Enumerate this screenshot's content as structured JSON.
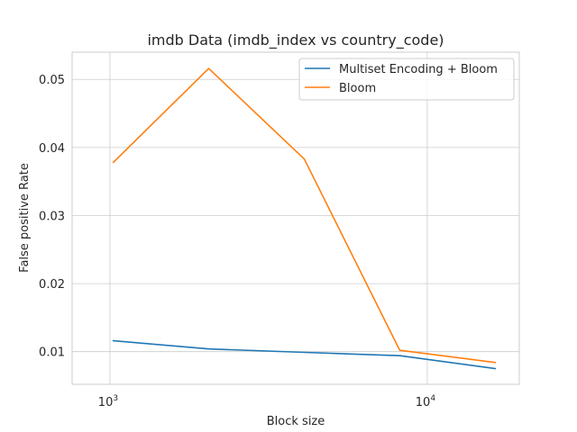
{
  "chart_data": {
    "type": "line",
    "title": "imdb Data (imdb_index vs country_code)",
    "xlabel": "Block size",
    "ylabel": "False positive Rate",
    "xscale": "log",
    "xlim": [
      760,
      19500
    ],
    "ylim": [
      0.0052,
      0.054
    ],
    "grid": true,
    "legend_position": "top-right",
    "x_ticks": [
      {
        "value": 1000,
        "base": "10",
        "exp": "3"
      },
      {
        "value": 10000,
        "base": "10",
        "exp": "4"
      }
    ],
    "y_ticks": [
      {
        "value": 0.01,
        "label": "0.01"
      },
      {
        "value": 0.02,
        "label": "0.02"
      },
      {
        "value": 0.03,
        "label": "0.03"
      },
      {
        "value": 0.04,
        "label": "0.04"
      },
      {
        "value": 0.05,
        "label": "0.05"
      }
    ],
    "x": [
      1024,
      2048,
      4096,
      8192,
      16384
    ],
    "series": [
      {
        "name": "Multiset Encoding + Bloom",
        "color": "#1f77b4",
        "values": [
          0.0116,
          0.0104,
          0.0099,
          0.0094,
          0.0075
        ]
      },
      {
        "name": "Bloom",
        "color": "#ff7f0e",
        "values": [
          0.0378,
          0.0516,
          0.0383,
          0.0102,
          0.0084
        ]
      }
    ]
  }
}
